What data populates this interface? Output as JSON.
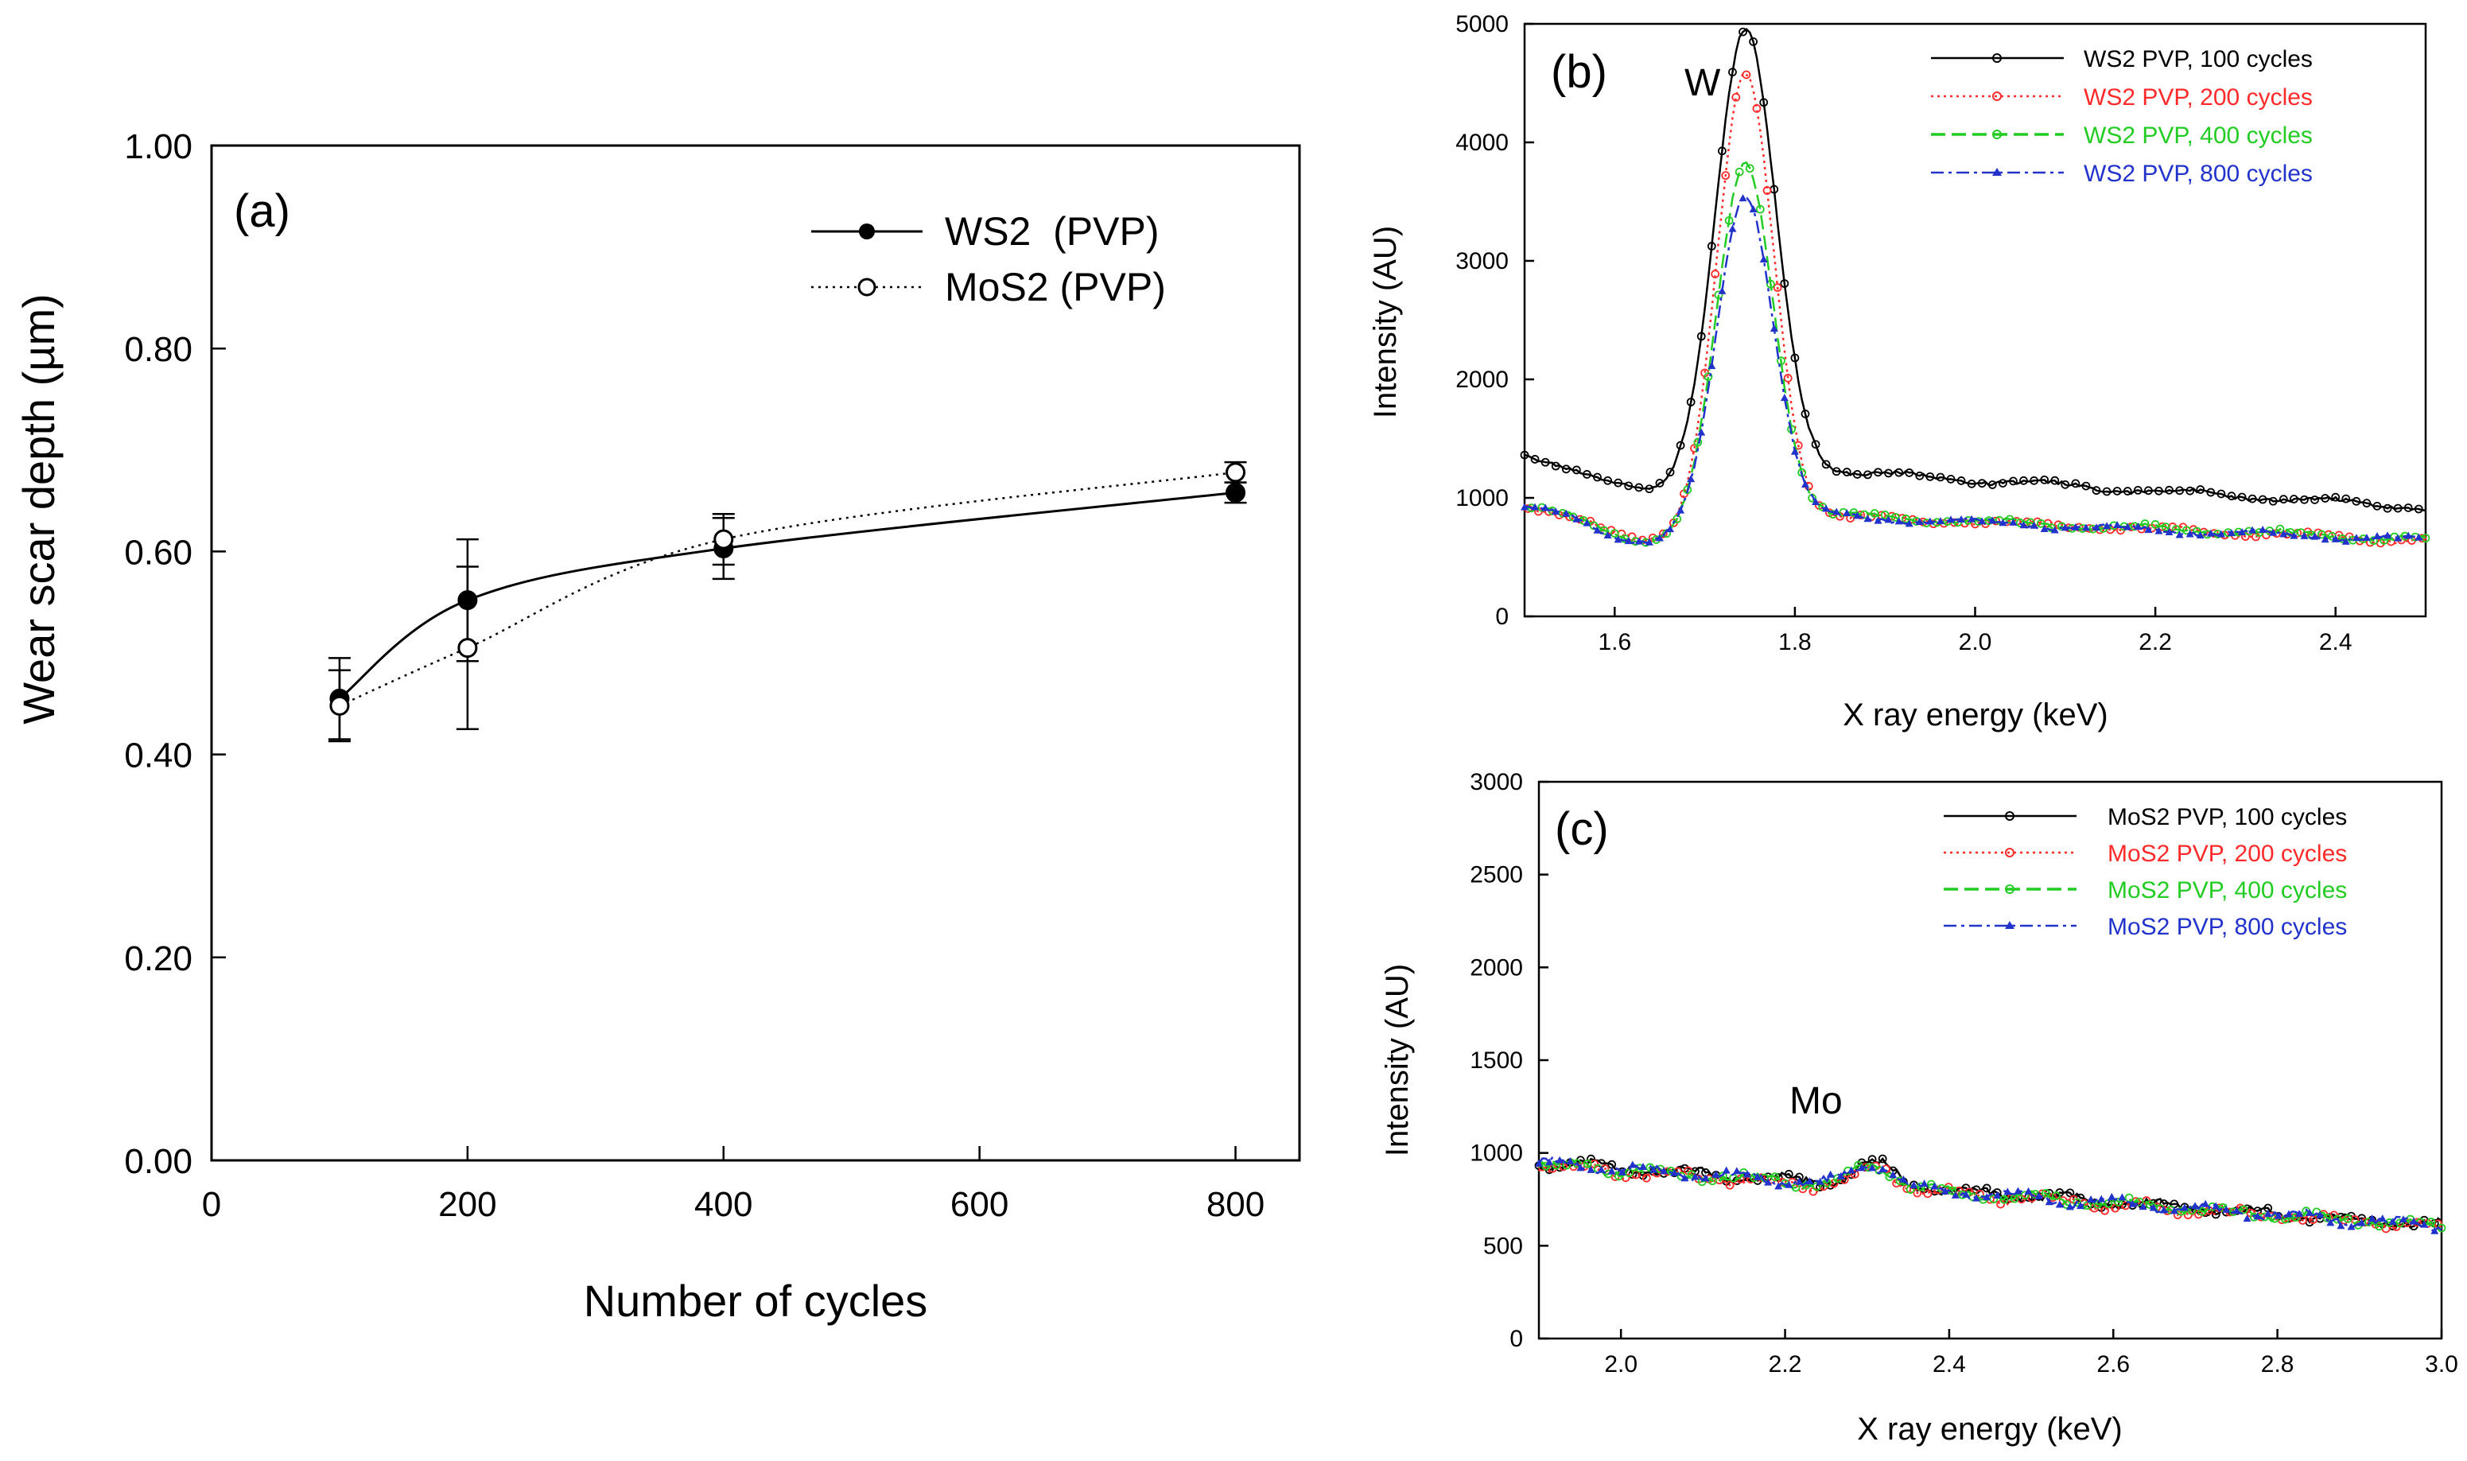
{
  "chart_data": [
    {
      "panel": "(a)",
      "type": "line",
      "title": "",
      "xlabel": "Number of cycles",
      "ylabel": "Wear scar depth (µm)",
      "xlim": [
        0,
        850
      ],
      "ylim": [
        0,
        1.0
      ],
      "xticks": [
        0,
        200,
        400,
        600,
        800
      ],
      "yticks": [
        0.0,
        0.2,
        0.4,
        0.6,
        0.8,
        1.0
      ],
      "xtick_labels": [
        "0",
        "200",
        "400",
        "600",
        "800"
      ],
      "ytick_labels": [
        "0.00",
        "0.20",
        "0.40",
        "0.60",
        "0.80",
        "1.00"
      ],
      "legend_position": "top-right",
      "grid": false,
      "series": [
        {
          "name": "WS2  (PVP)",
          "marker": "filled-circle",
          "line": "solid",
          "color": "#000000",
          "x": [
            100,
            200,
            400,
            800
          ],
          "y": [
            0.455,
            0.552,
            0.603,
            0.658
          ],
          "err": [
            0.04,
            0.06,
            0.03,
            0.01
          ]
        },
        {
          "name": "MoS2 (PVP)",
          "marker": "open-circle",
          "line": "dotted",
          "color": "#000000",
          "x": [
            100,
            200,
            400,
            800
          ],
          "y": [
            0.448,
            0.505,
            0.612,
            0.678
          ],
          "err": [
            0.035,
            0.08,
            0.025,
            0.01
          ]
        }
      ]
    },
    {
      "panel": "(b)",
      "type": "line",
      "xlabel": "X ray energy (keV)",
      "ylabel": "Intensity (AU)",
      "xlim": [
        1.5,
        2.5
      ],
      "ylim": [
        0,
        5000
      ],
      "xticks": [
        1.6,
        1.8,
        2.0,
        2.2,
        2.4
      ],
      "yticks": [
        0,
        1000,
        2000,
        3000,
        4000,
        5000
      ],
      "xtick_labels": [
        "1.6",
        "1.8",
        "2.0",
        "2.2",
        "2.4"
      ],
      "ytick_labels": [
        "0",
        "1000",
        "2000",
        "3000",
        "4000",
        "5000"
      ],
      "annotation": "W",
      "legend_position": "top-right",
      "series": [
        {
          "name": "WS2 PVP, 100 cycles",
          "color": "#000000",
          "dash": "solid",
          "base_start": 1380,
          "base_end": 920,
          "peak_center": 1.745,
          "peak_sigma": 0.033,
          "peak_height": 3710
        },
        {
          "name": "WS2 PVP, 200 cycles",
          "color": "#ff2a2a",
          "dash": "dotted",
          "base_start": 950,
          "base_end": 640,
          "peak_center": 1.745,
          "peak_sigma": 0.031,
          "peak_height": 3720
        },
        {
          "name": "WS2 PVP, 400 cycles",
          "color": "#22cc22",
          "dash": "dashed",
          "base_start": 950,
          "base_end": 650,
          "peak_center": 1.745,
          "peak_sigma": 0.031,
          "peak_height": 2970
        },
        {
          "name": "WS2 PVP, 800 cycles",
          "color": "#2233cc",
          "dash": "dashdot",
          "base_start": 940,
          "base_end": 640,
          "peak_center": 1.745,
          "peak_sigma": 0.031,
          "peak_height": 2720
        }
      ]
    },
    {
      "panel": "(c)",
      "type": "line",
      "xlabel": "X ray energy (keV)",
      "ylabel": "Intensity (AU)",
      "xlim": [
        1.9,
        3.0
      ],
      "ylim": [
        0,
        3000
      ],
      "xticks": [
        2.0,
        2.2,
        2.4,
        2.6,
        2.8,
        3.0
      ],
      "yticks": [
        0,
        500,
        1000,
        1500,
        2000,
        2500,
        3000
      ],
      "xtick_labels": [
        "2.0",
        "2.2",
        "2.4",
        "2.6",
        "2.8",
        "3.0"
      ],
      "ytick_labels": [
        "0",
        "500",
        "1000",
        "1500",
        "2000",
        "2500",
        "3000"
      ],
      "annotation": "Mo",
      "legend_position": "top-right",
      "series": [
        {
          "name": "MoS2 PVP, 100 cycles",
          "color": "#000000",
          "dash": "solid",
          "base_start": 950,
          "base_end": 610,
          "peak_center": 2.31,
          "peak_sigma": 0.025,
          "peak_height": 120
        },
        {
          "name": "MoS2 PVP, 200 cycles",
          "color": "#ff2a2a",
          "dash": "dotted",
          "base_start": 930,
          "base_end": 600,
          "peak_center": 2.31,
          "peak_sigma": 0.025,
          "peak_height": 110
        },
        {
          "name": "MoS2 PVP, 400 cycles",
          "color": "#22cc22",
          "dash": "dashed",
          "base_start": 940,
          "base_end": 605,
          "peak_center": 2.31,
          "peak_sigma": 0.025,
          "peak_height": 110
        },
        {
          "name": "MoS2 PVP, 800 cycles",
          "color": "#2233cc",
          "dash": "dashdot",
          "base_start": 945,
          "base_end": 605,
          "peak_center": 2.31,
          "peak_sigma": 0.025,
          "peak_height": 115
        }
      ]
    }
  ]
}
